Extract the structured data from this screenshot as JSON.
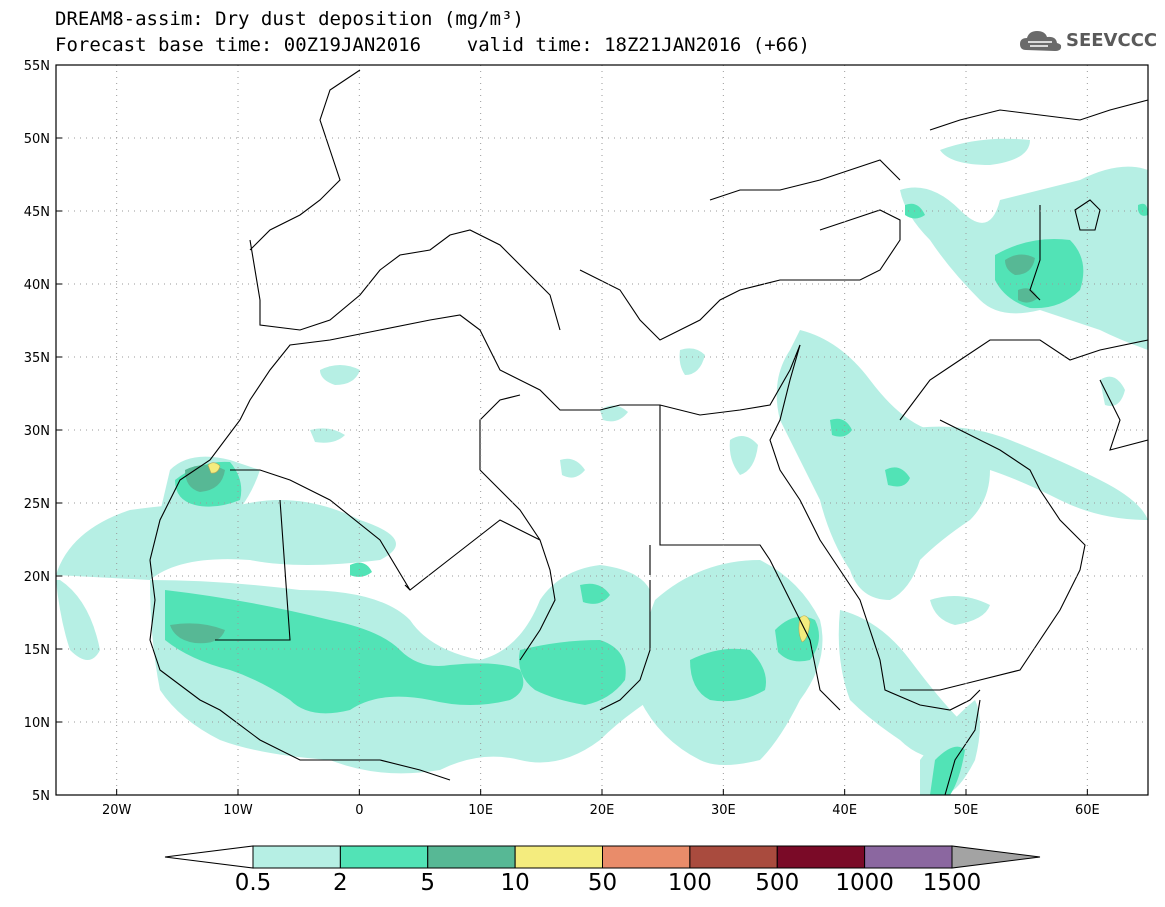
{
  "title": {
    "line1": "DREAM8-assim: Dry dust deposition (mg/m³)",
    "line2": "Forecast base time: 00Z19JAN2016    valid time: 18Z21JAN2016 (+66)"
  },
  "logo": {
    "text": "SEEVCCC",
    "icon": "cloud-icon"
  },
  "map": {
    "lat_range": [
      5,
      55
    ],
    "lon_range": [
      -25,
      65
    ],
    "lat_ticks": [
      "5N",
      "10N",
      "15N",
      "20N",
      "25N",
      "30N",
      "35N",
      "40N",
      "45N",
      "50N",
      "55N"
    ],
    "lon_ticks": [
      "20W",
      "10W",
      "0",
      "10E",
      "20E",
      "30E",
      "40E",
      "50E",
      "60E"
    ],
    "grid": "dotted"
  },
  "colorbar": {
    "labels": [
      "0.5",
      "2",
      "5",
      "10",
      "50",
      "100",
      "500",
      "1000",
      "1500"
    ],
    "colors": [
      "#b6efe4",
      "#52e3b6",
      "#57b895",
      "#f4ec7e",
      "#e98c6a",
      "#a94b3e",
      "#7a0a27",
      "#8b67a0",
      "#a3a3a3"
    ],
    "under_color": "#ffffff"
  }
}
